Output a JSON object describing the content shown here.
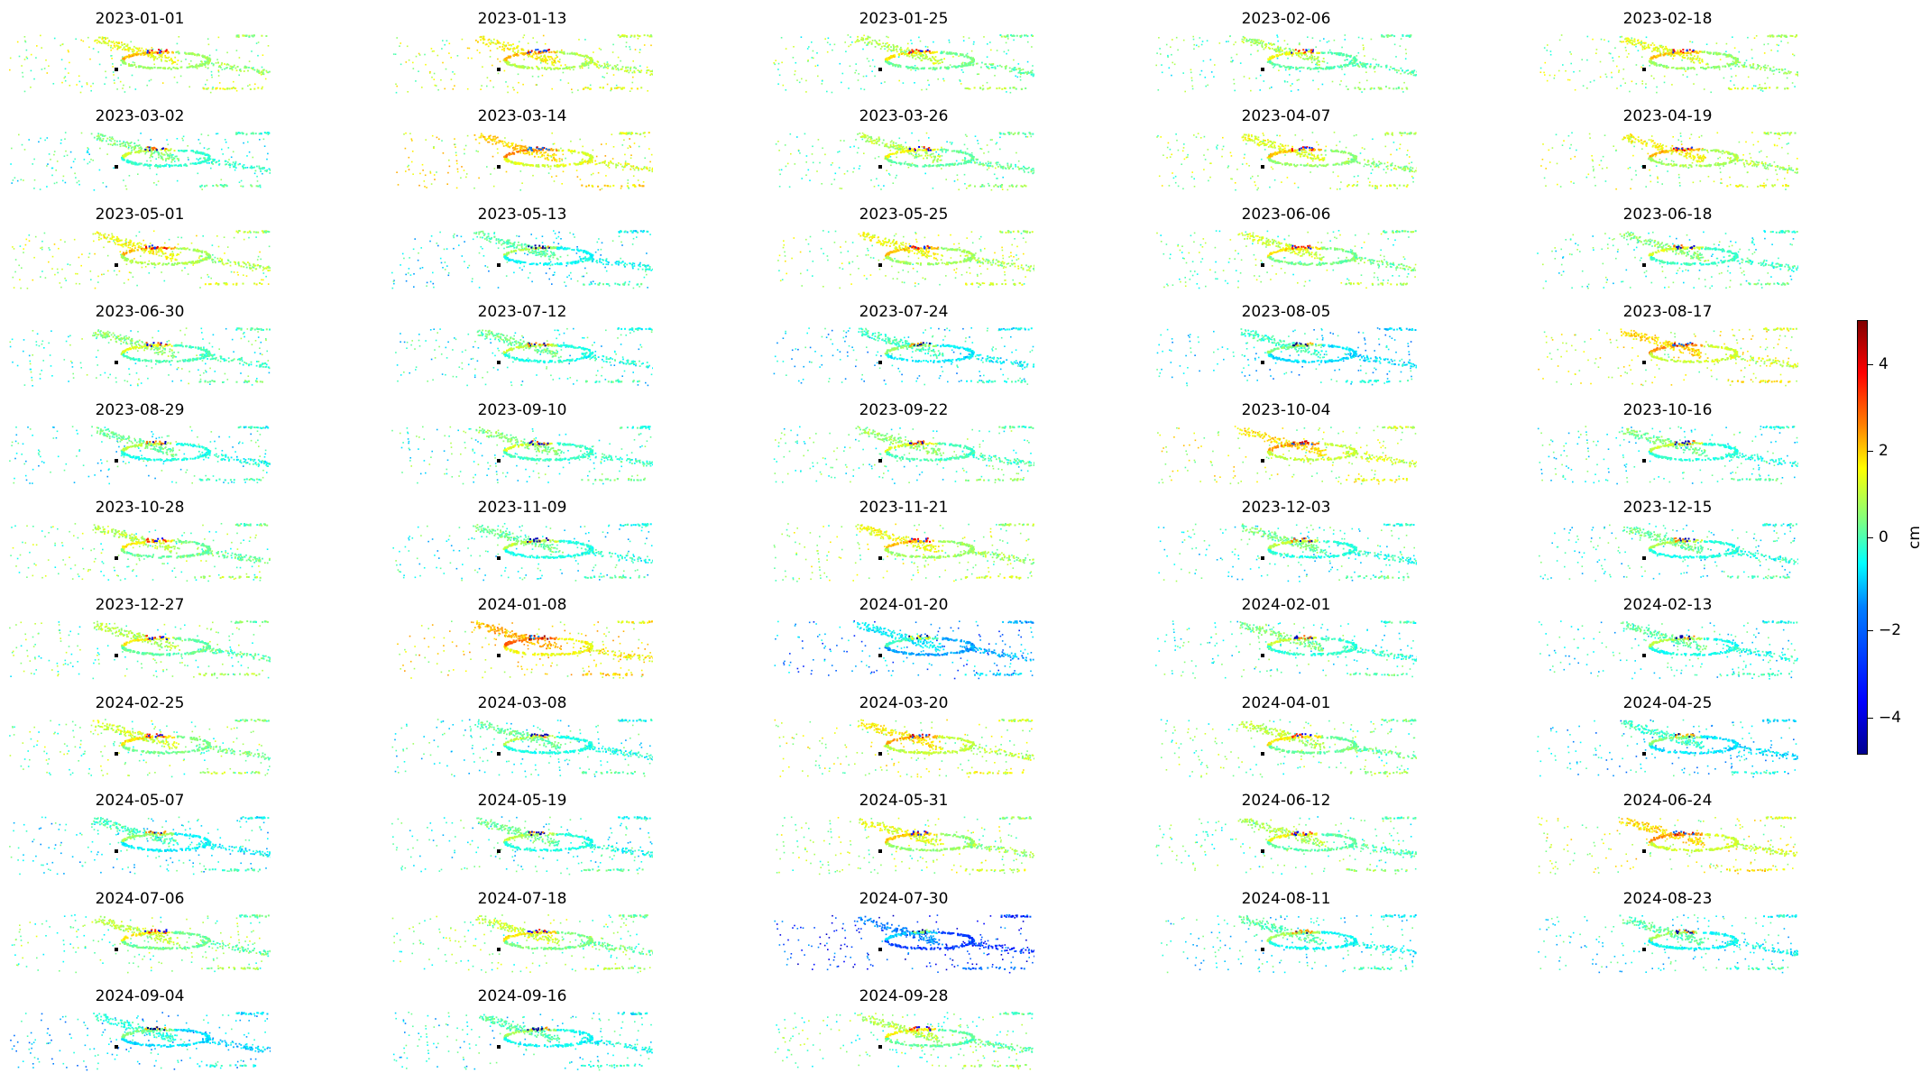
{
  "chart_data": {
    "type": "scatter",
    "title": "",
    "panel_titles": [
      "2023-01-01",
      "2023-01-13",
      "2023-01-25",
      "2023-02-06",
      "2023-02-18",
      "2023-03-02",
      "2023-03-14",
      "2023-03-26",
      "2023-04-07",
      "2023-04-19",
      "2023-05-01",
      "2023-05-13",
      "2023-05-25",
      "2023-06-06",
      "2023-06-18",
      "2023-06-30",
      "2023-07-12",
      "2023-07-24",
      "2023-08-05",
      "2023-08-17",
      "2023-08-29",
      "2023-09-10",
      "2023-09-22",
      "2023-10-04",
      "2023-10-16",
      "2023-10-28",
      "2023-11-09",
      "2023-11-21",
      "2023-12-03",
      "2023-12-15",
      "2023-12-27",
      "2024-01-08",
      "2024-01-20",
      "2024-02-01",
      "2024-02-13",
      "2024-02-25",
      "2024-03-08",
      "2024-03-20",
      "2024-04-01",
      "2024-04-25",
      "2024-05-07",
      "2024-05-19",
      "2024-05-31",
      "2024-06-12",
      "2024-06-24",
      "2024-07-06",
      "2024-07-18",
      "2024-07-30",
      "2024-08-11",
      "2024-08-23",
      "2024-09-04",
      "2024-09-16",
      "2024-09-28"
    ],
    "panel_mean_values": [
      0.3,
      0.5,
      -0.2,
      -0.4,
      0.2,
      -0.8,
      0.9,
      -0.3,
      0.2,
      0.4,
      0.4,
      -1.2,
      0.3,
      -0.1,
      -0.7,
      -0.6,
      -1.0,
      -1.4,
      -1.5,
      0.8,
      -1.0,
      -0.7,
      -0.6,
      0.7,
      -0.9,
      -0.2,
      -1.0,
      0.3,
      -0.9,
      -1.0,
      -0.3,
      1.2,
      -2.2,
      -0.8,
      -1.1,
      -0.1,
      -1.0,
      0.6,
      -0.2,
      -1.5,
      -1.3,
      -1.0,
      0.2,
      -0.4,
      0.8,
      -0.2,
      -0.1,
      -3.2,
      -1.2,
      -1.2,
      -1.6,
      -1.2,
      -0.3
    ],
    "colorbar": {
      "label": "cm",
      "range": [
        -5,
        5
      ],
      "ticks": [
        -4,
        -2,
        0,
        2,
        4
      ],
      "tick_labels": [
        "−4",
        "−2",
        "0",
        "2",
        "4"
      ],
      "colormap": "jet"
    },
    "grid": "off",
    "layout": "11 rows x 5 columns"
  }
}
